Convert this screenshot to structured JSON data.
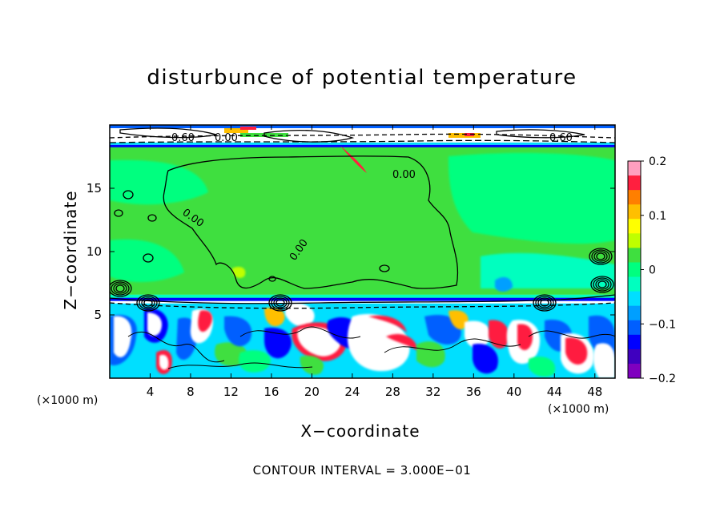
{
  "chart_data": {
    "type": "heatmap",
    "title": "disturbunce of potential temperature",
    "xlabel": "X−coordinate",
    "ylabel": "Z−coordinate",
    "x_unit": "(×1000 m)",
    "y_unit": "(×1000 m)",
    "xlim": [
      0,
      50
    ],
    "ylim": [
      0,
      20
    ],
    "x_ticks": [
      4,
      8,
      12,
      16,
      20,
      24,
      28,
      32,
      36,
      40,
      44,
      48
    ],
    "y_ticks": [
      5,
      10,
      15
    ],
    "colorbar": {
      "range": [
        -0.2,
        0.2
      ],
      "ticks": [
        0.2,
        0.1,
        0,
        -0.1,
        -0.2
      ],
      "tick_labels": [
        "0.2",
        "0.1",
        "0",
        "−0.1",
        "−0.2"
      ],
      "colors": [
        "#ff9fbf",
        "#ff1f3f",
        "#ff7f00",
        "#ffbf00",
        "#ffff00",
        "#bfff00",
        "#3fdf3f",
        "#00ff7f",
        "#00ffbf",
        "#00dfff",
        "#009fff",
        "#005fff",
        "#0000ff",
        "#3f00bf",
        "#7f00bf"
      ]
    },
    "contour_labels": [
      "0.60",
      "0.00",
      "0.60",
      "0.00",
      "0.00",
      "0.00"
    ],
    "caption": "CONTOUR INTERVAL = 3.000E−01"
  }
}
